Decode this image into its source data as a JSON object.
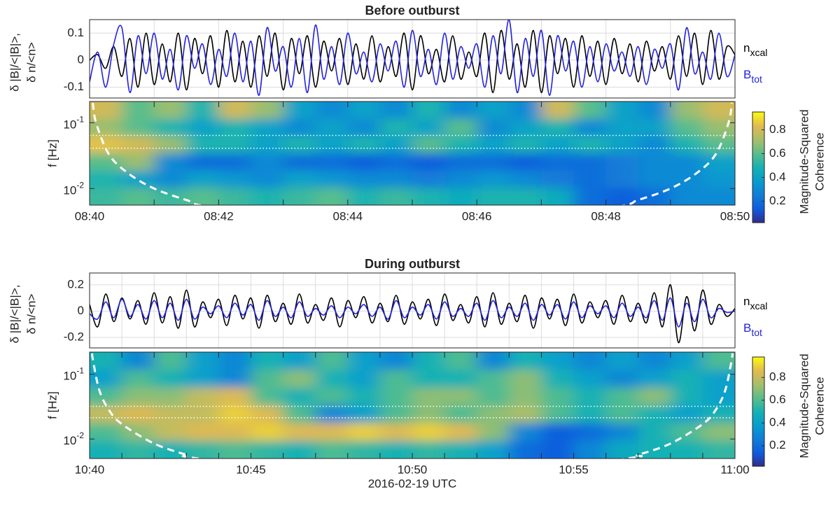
{
  "chart_data": [
    {
      "type": "line",
      "title": "Before outburst",
      "ylabel": [
        "δ |B|/<|B|>,",
        "δ n/<n>"
      ],
      "x": [
        40,
        40.125,
        40.25,
        40.375,
        40.5,
        40.625,
        40.75,
        40.875,
        41,
        41.125,
        41.25,
        41.375,
        41.5,
        41.625,
        41.75,
        41.875,
        42,
        42.125,
        42.25,
        42.375,
        42.5,
        42.625,
        42.75,
        42.875,
        43,
        43.125,
        43.25,
        43.375,
        43.5,
        43.625,
        43.75,
        43.875,
        44,
        44.125,
        44.25,
        44.375,
        44.5,
        44.625,
        44.75,
        44.875,
        45,
        45.125,
        45.25,
        45.375,
        45.5,
        45.625,
        45.75,
        45.875,
        46,
        46.125,
        46.25,
        46.375,
        46.5,
        46.625,
        46.75,
        46.875,
        47,
        47.125,
        47.25,
        47.375,
        47.5,
        47.625,
        47.75,
        47.875,
        48,
        48.125,
        48.25,
        48.375,
        48.5,
        48.625,
        48.75,
        48.875,
        49,
        49.125,
        49.25,
        49.375,
        49.5,
        49.625,
        49.75,
        49.875,
        50
      ],
      "xlim": [
        40,
        50
      ],
      "xgrid": [
        41,
        42,
        43,
        44,
        45,
        46,
        47,
        48,
        49
      ],
      "ylim": [
        -0.14,
        0.15
      ],
      "yticks": [
        -0.1,
        0,
        0.1
      ],
      "grid": true,
      "series": [
        {
          "name": "n",
          "subscript": "xcal",
          "color": "#000000",
          "values": [
            0,
            0.02,
            -0.03,
            0.05,
            -0.06,
            0.08,
            -0.1,
            0.1,
            -0.09,
            0.06,
            -0.08,
            0.1,
            -0.11,
            0.08,
            -0.05,
            0.09,
            -0.1,
            0.11,
            -0.08,
            0.07,
            -0.1,
            0.09,
            -0.06,
            0.1,
            -0.11,
            0.08,
            -0.05,
            0.09,
            -0.1,
            0.07,
            -0.04,
            0.08,
            -0.09,
            0.06,
            -0.07,
            0.09,
            -0.08,
            0.05,
            -0.06,
            0.1,
            -0.11,
            0.09,
            -0.05,
            0.04,
            -0.08,
            0.09,
            -0.07,
            0.03,
            -0.06,
            0.1,
            -0.12,
            0.11,
            -0.07,
            0.06,
            -0.1,
            0.11,
            -0.12,
            0.09,
            -0.05,
            0.08,
            -0.1,
            0.09,
            -0.06,
            0.07,
            -0.09,
            0.08,
            -0.05,
            0.06,
            -0.08,
            0.07,
            -0.04,
            0.05,
            -0.07,
            0.09,
            -0.06,
            0.1,
            -0.09,
            0.11,
            -0.07,
            0.05,
            0.02
          ]
        },
        {
          "name": "B",
          "subscript": "tot",
          "color": "#2424dd",
          "values": [
            -0.08,
            0.03,
            -0.1,
            0.06,
            0.12,
            -0.12,
            0.09,
            -0.05,
            0.1,
            -0.07,
            0.04,
            -0.11,
            0.09,
            -0.03,
            0.06,
            -0.09,
            0.04,
            -0.06,
            0.1,
            -0.08,
            0.07,
            -0.13,
            0.12,
            -0.04,
            0.05,
            -0.1,
            0.08,
            -0.12,
            0.13,
            -0.07,
            0.05,
            -0.09,
            0.1,
            -0.05,
            0.03,
            -0.08,
            0.06,
            -0.04,
            0.07,
            -0.1,
            0.11,
            -0.06,
            0.04,
            -0.09,
            0.1,
            -0.07,
            0.05,
            -0.03,
            0.06,
            -0.1,
            0.09,
            -0.05,
            0.15,
            -0.12,
            0.08,
            -0.06,
            0.11,
            -0.13,
            0.09,
            -0.04,
            0.07,
            -0.1,
            0.05,
            -0.08,
            0.06,
            -0.04,
            0.03,
            -0.06,
            0.05,
            -0.09,
            0.04,
            -0.03,
            0.06,
            -0.11,
            0.12,
            -0.05,
            0.03,
            -0.07,
            0.1,
            -0.06,
            0.02
          ]
        }
      ]
    },
    {
      "type": "heatmap",
      "ylabel": "f [Hz]",
      "yscale": "log",
      "xlim": [
        40,
        50
      ],
      "ylim": [
        0.0056,
        0.21
      ],
      "yticks": [
        {
          "value": 0.1,
          "label": "10",
          "exponent": "-1"
        },
        {
          "value": 0.01,
          "label": "10",
          "exponent": "-2"
        }
      ],
      "xticks": [
        {
          "value": 40,
          "label": "08:40"
        },
        {
          "value": 42,
          "label": "08:42"
        },
        {
          "value": 44,
          "label": "08:44"
        },
        {
          "value": 46,
          "label": "08:46"
        },
        {
          "value": 48,
          "label": "08:48"
        },
        {
          "value": 50,
          "label": "08:50"
        }
      ],
      "xminorticks": [
        41,
        43,
        45,
        47,
        49
      ],
      "z": [
        [
          0.8,
          0.6,
          0.7,
          0.5,
          0.8,
          0.7,
          0.4,
          0.3,
          0.4,
          0.3,
          0.5,
          0.3,
          0.4,
          0.3,
          0.8,
          0.6,
          0.4,
          0.3,
          0.7,
          0.8
        ],
        [
          0.7,
          0.6,
          0.5,
          0.4,
          0.5,
          0.4,
          0.3,
          0.4,
          0.3,
          0.5,
          0.4,
          0.6,
          0.3,
          0.4,
          0.5,
          0.3,
          0.4,
          0.4,
          0.6,
          0.7
        ],
        [
          0.85,
          0.8,
          0.7,
          0.5,
          0.5,
          0.4,
          0.5,
          0.4,
          0.5,
          0.4,
          0.6,
          0.5,
          0.4,
          0.5,
          0.4,
          0.5,
          0.4,
          0.3,
          0.5,
          0.6
        ],
        [
          0.6,
          0.7,
          0.3,
          0.2,
          0.2,
          0.3,
          0.2,
          0.2,
          0.15,
          0.2,
          0.15,
          0.2,
          0.2,
          0.15,
          0.2,
          0.2,
          0.25,
          0.3,
          0.3,
          0.4
        ],
        [
          0.5,
          0.4,
          0.3,
          0.4,
          0.35,
          0.3,
          0.4,
          0.35,
          0.3,
          0.3,
          0.25,
          0.3,
          0.35,
          0.3,
          0.25,
          0.2,
          0.25,
          0.3,
          0.3,
          0.35
        ],
        [
          0.55,
          0.6,
          0.55,
          0.6,
          0.55,
          0.5,
          0.55,
          0.6,
          0.5,
          0.55,
          0.5,
          0.45,
          0.5,
          0.5,
          0.45,
          0.2,
          0.15,
          0.2,
          0.3,
          0.3
        ]
      ],
      "hlines": [
        0.064,
        0.041
      ],
      "coi": {
        "x": [
          40.05,
          40.1,
          40.3,
          40.6,
          41,
          41.5,
          42,
          45,
          48,
          48.5,
          49,
          49.4,
          49.7,
          49.9,
          49.95
        ],
        "y": [
          0.2,
          0.1,
          0.033,
          0.017,
          0.01,
          0.0067,
          0.005,
          0.002,
          0.005,
          0.0067,
          0.01,
          0.017,
          0.033,
          0.1,
          0.2
        ]
      },
      "colorbar": {
        "label": [
          "Magnitude-Squared",
          "Coherence"
        ],
        "ylim": [
          0.02,
          0.95
        ],
        "yticks": [
          0.2,
          0.4,
          0.6,
          0.8
        ]
      }
    },
    {
      "type": "line",
      "title": "During outburst",
      "ylabel": [
        "δ |B|/<|B|>,",
        "δ n/<n>"
      ],
      "x": [
        40,
        40.25,
        40.5,
        40.75,
        41,
        41.25,
        41.5,
        41.75,
        42,
        42.25,
        42.5,
        42.75,
        43,
        43.25,
        43.5,
        43.75,
        44,
        44.25,
        44.5,
        44.75,
        45,
        45.25,
        45.5,
        45.75,
        46,
        46.25,
        46.5,
        46.75,
        47,
        47.25,
        47.5,
        47.75,
        48,
        48.25,
        48.5,
        48.75,
        49,
        49.25,
        49.5,
        49.75,
        50,
        50.25,
        50.5,
        50.75,
        51,
        51.25,
        51.5,
        51.75,
        52,
        52.25,
        52.5,
        52.75,
        53,
        53.25,
        53.5,
        53.75,
        54,
        54.25,
        54.5,
        54.75,
        55,
        55.25,
        55.5,
        55.75,
        56,
        56.25,
        56.5,
        56.75,
        57,
        57.25,
        57.5,
        57.75,
        58,
        58.25,
        58.5,
        58.75,
        59,
        59.25,
        59.5,
        59.75,
        60
      ],
      "xlim": [
        40,
        60
      ],
      "xgrid": [
        41,
        42,
        43,
        44,
        45,
        46,
        47,
        48,
        49,
        50,
        51,
        52,
        53,
        54,
        55,
        56,
        57,
        58,
        59
      ],
      "ylim": [
        -0.28,
        0.29
      ],
      "yticks": [
        -0.2,
        0,
        0.2
      ],
      "grid": true,
      "series": [
        {
          "name": "n",
          "subscript": "xcal",
          "color": "#000000",
          "values": [
            0.05,
            -0.12,
            0.13,
            -0.08,
            0.1,
            -0.06,
            0.08,
            -0.1,
            0.14,
            -0.09,
            0.11,
            -0.13,
            0.16,
            -0.12,
            0.07,
            -0.05,
            0.09,
            -0.11,
            0.12,
            -0.06,
            0.1,
            -0.13,
            0.12,
            -0.08,
            0.06,
            -0.1,
            0.13,
            -0.09,
            0.05,
            -0.07,
            0.1,
            -0.12,
            0.08,
            -0.05,
            0.11,
            -0.09,
            0.06,
            -0.08,
            0.12,
            -0.1,
            0.07,
            -0.06,
            0.09,
            -0.11,
            0.13,
            -0.07,
            0.05,
            -0.09,
            0.11,
            -0.12,
            0.14,
            -0.1,
            0.06,
            -0.08,
            0.12,
            -0.13,
            0.1,
            -0.06,
            0.09,
            -0.11,
            0.13,
            -0.09,
            0.07,
            -0.05,
            0.08,
            -0.1,
            0.12,
            -0.08,
            0.06,
            -0.09,
            0.14,
            -0.12,
            0.2,
            -0.24,
            0.11,
            -0.15,
            0.16,
            -0.1,
            0.05,
            -0.04,
            0.02
          ]
        },
        {
          "name": "B",
          "subscript": "tot",
          "color": "#2424dd",
          "values": [
            -0.02,
            -0.06,
            0.07,
            -0.05,
            0.09,
            -0.04,
            0.05,
            -0.06,
            0.08,
            -0.05,
            0.06,
            -0.07,
            0.09,
            -0.06,
            0.03,
            -0.02,
            0.04,
            -0.05,
            0.06,
            -0.03,
            0.05,
            -0.07,
            0.08,
            -0.04,
            0.03,
            -0.05,
            0.07,
            -0.04,
            0.02,
            -0.03,
            0.04,
            -0.05,
            0.03,
            -0.02,
            0.05,
            -0.04,
            0.03,
            -0.06,
            0.08,
            -0.05,
            0.03,
            -0.03,
            0.05,
            -0.06,
            0.07,
            -0.04,
            0.02,
            -0.04,
            0.06,
            -0.07,
            0.08,
            -0.05,
            0.03,
            -0.04,
            0.06,
            -0.07,
            0.05,
            -0.03,
            0.05,
            -0.06,
            0.07,
            -0.05,
            0.04,
            -0.02,
            0.04,
            -0.05,
            0.06,
            -0.04,
            0.03,
            -0.05,
            0.08,
            -0.07,
            0.1,
            -0.12,
            0.06,
            -0.08,
            0.09,
            -0.05,
            0.02,
            -0.01,
            0
          ]
        }
      ]
    },
    {
      "type": "heatmap",
      "ylabel": "f [Hz]",
      "xlabel": "2016-02-19 UTC",
      "yscale": "log",
      "xlim": [
        40,
        60
      ],
      "ylim": [
        0.005,
        0.22
      ],
      "yticks": [
        {
          "value": 0.1,
          "label": "10",
          "exponent": "-1"
        },
        {
          "value": 0.01,
          "label": "10",
          "exponent": "-2"
        }
      ],
      "xticks": [
        {
          "value": 40,
          "label": "10:40"
        },
        {
          "value": 45,
          "label": "10:45"
        },
        {
          "value": 50,
          "label": "10:50"
        },
        {
          "value": 55,
          "label": "10:55"
        },
        {
          "value": 60,
          "label": "11:00"
        }
      ],
      "xminorticks": [
        41,
        42,
        43,
        44,
        46,
        47,
        48,
        49,
        51,
        52,
        53,
        54,
        56,
        57,
        58,
        59
      ],
      "z": [
        [
          0.5,
          0.3,
          0.6,
          0.4,
          0.3,
          0.5,
          0.4,
          0.6,
          0.4,
          0.3,
          0.5,
          0.6,
          0.3,
          0.5,
          0.4,
          0.3,
          0.4,
          0.3,
          0.4,
          0.6
        ],
        [
          0.4,
          0.6,
          0.5,
          0.4,
          0.3,
          0.6,
          0.7,
          0.5,
          0.4,
          0.6,
          0.5,
          0.5,
          0.6,
          0.7,
          0.5,
          0.4,
          0.3,
          0.4,
          0.5,
          0.4
        ],
        [
          0.6,
          0.7,
          0.7,
          0.8,
          0.85,
          0.6,
          0.5,
          0.6,
          0.5,
          0.6,
          0.7,
          0.7,
          0.6,
          0.7,
          0.6,
          0.5,
          0.6,
          0.7,
          0.5,
          0.4
        ],
        [
          0.8,
          0.85,
          0.8,
          0.8,
          0.9,
          0.85,
          0.6,
          0.3,
          0.4,
          0.6,
          0.7,
          0.6,
          0.7,
          0.75,
          0.6,
          0.5,
          0.6,
          0.5,
          0.4,
          0.5
        ],
        [
          0.6,
          0.7,
          0.8,
          0.85,
          0.85,
          0.9,
          0.85,
          0.85,
          0.9,
          0.85,
          0.9,
          0.85,
          0.7,
          0.3,
          0.15,
          0.2,
          0.3,
          0.5,
          0.6,
          0.7
        ],
        [
          0.5,
          0.55,
          0.5,
          0.55,
          0.6,
          0.55,
          0.5,
          0.6,
          0.55,
          0.5,
          0.55,
          0.5,
          0.4,
          0.2,
          0.15,
          0.3,
          0.45,
          0.5,
          0.5,
          0.55
        ]
      ],
      "hlines": [
        0.032,
        0.0213
      ],
      "coi": {
        "x": [
          40.08,
          40.1,
          40.3,
          40.6,
          41,
          42,
          43,
          43.5,
          50,
          56.5,
          57,
          58,
          59,
          59.4,
          59.7,
          59.9,
          59.92
        ],
        "y": [
          0.21,
          0.17,
          0.057,
          0.028,
          0.017,
          0.0085,
          0.0057,
          0.0049,
          0.002,
          0.0049,
          0.0057,
          0.0085,
          0.017,
          0.028,
          0.057,
          0.17,
          0.21
        ]
      },
      "colorbar": {
        "label": [
          "Magnitude-Squared",
          "Coherence"
        ],
        "ylim": [
          0.02,
          0.98
        ],
        "yticks": [
          0.2,
          0.4,
          0.6,
          0.8
        ]
      }
    }
  ]
}
